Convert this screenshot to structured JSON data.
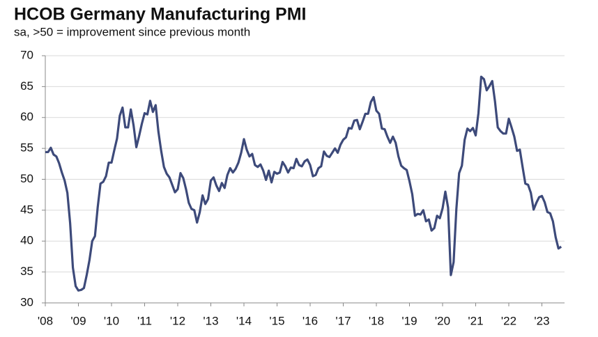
{
  "chart_data": {
    "type": "line",
    "title": "HCOB Germany Manufacturing PMI",
    "subtitle": "sa, >50 = improvement since previous month",
    "categories": [
      "'08",
      null,
      null,
      null,
      null,
      null,
      null,
      null,
      null,
      null,
      null,
      null,
      "'09",
      null,
      null,
      null,
      null,
      null,
      null,
      null,
      null,
      null,
      null,
      null,
      "'10",
      null,
      null,
      null,
      null,
      null,
      null,
      null,
      null,
      null,
      null,
      null,
      "'11",
      null,
      null,
      null,
      null,
      null,
      null,
      null,
      null,
      null,
      null,
      null,
      "'12",
      null,
      null,
      null,
      null,
      null,
      null,
      null,
      null,
      null,
      null,
      null,
      "'13",
      null,
      null,
      null,
      null,
      null,
      null,
      null,
      null,
      null,
      null,
      null,
      "'14",
      null,
      null,
      null,
      null,
      null,
      null,
      null,
      null,
      null,
      null,
      null,
      "'15",
      null,
      null,
      null,
      null,
      null,
      null,
      null,
      null,
      null,
      null,
      null,
      "'16",
      null,
      null,
      null,
      null,
      null,
      null,
      null,
      null,
      null,
      null,
      null,
      "'17",
      null,
      null,
      null,
      null,
      null,
      null,
      null,
      null,
      null,
      null,
      null,
      "'18",
      null,
      null,
      null,
      null,
      null,
      null,
      null,
      null,
      null,
      null,
      null,
      "'19",
      null,
      null,
      null,
      null,
      null,
      null,
      null,
      null,
      null,
      null,
      null,
      "'20",
      null,
      null,
      null,
      null,
      null,
      null,
      null,
      null,
      null,
      null,
      null,
      "'21",
      null,
      null,
      null,
      null,
      null,
      null,
      null,
      null,
      null,
      null,
      null,
      "'22",
      null,
      null,
      null,
      null,
      null,
      null,
      null,
      null,
      null,
      null,
      null,
      "'23",
      null,
      null,
      null,
      null,
      null,
      null,
      null
    ],
    "series": [
      {
        "color": "#3d4a7a",
        "values": [
          54.4,
          54.4,
          55.1,
          54.0,
          53.7,
          52.6,
          51.1,
          49.8,
          47.8,
          42.9,
          35.7,
          32.7,
          32.0,
          32.1,
          32.4,
          34.5,
          36.9,
          40.0,
          40.8,
          45.5,
          49.3,
          49.6,
          50.5,
          52.7,
          52.7,
          54.7,
          56.6,
          60.3,
          61.6,
          58.4,
          58.4,
          61.3,
          58.7,
          55.2,
          57.0,
          59.0,
          60.7,
          60.5,
          62.7,
          60.9,
          62.0,
          57.7,
          54.6,
          52.0,
          50.9,
          50.3,
          49.1,
          47.9,
          48.4,
          51.0,
          50.2,
          48.4,
          46.2,
          45.2,
          45.0,
          43.0,
          44.7,
          47.4,
          46.0,
          46.8,
          49.8,
          50.3,
          49.0,
          48.1,
          49.4,
          48.6,
          50.7,
          51.8,
          51.1,
          51.7,
          52.7,
          54.3,
          56.5,
          54.8,
          53.7,
          54.1,
          52.3,
          52.0,
          52.4,
          51.4,
          49.9,
          51.4,
          49.5,
          51.2,
          50.9,
          51.1,
          52.8,
          52.1,
          51.1,
          51.9,
          51.8,
          53.3,
          52.3,
          52.1,
          52.9,
          53.2,
          52.3,
          50.5,
          50.7,
          51.8,
          52.1,
          54.5,
          53.8,
          53.6,
          54.3,
          55.0,
          54.3,
          55.6,
          56.4,
          56.8,
          58.3,
          58.2,
          59.5,
          59.6,
          58.1,
          59.3,
          60.6,
          60.6,
          62.5,
          63.3,
          61.1,
          60.6,
          58.2,
          58.1,
          56.9,
          55.9,
          56.9,
          55.9,
          53.7,
          52.2,
          51.8,
          51.5,
          49.7,
          47.6,
          44.1,
          44.4,
          44.3,
          45.0,
          43.2,
          43.5,
          41.7,
          42.1,
          44.1,
          43.7,
          45.3,
          48.0,
          45.4,
          34.5,
          36.6,
          45.2,
          51.0,
          52.2,
          56.4,
          58.2,
          57.8,
          58.3,
          57.1,
          60.7,
          66.6,
          66.2,
          64.4,
          65.1,
          65.9,
          62.6,
          58.4,
          57.8,
          57.4,
          57.4,
          59.8,
          58.4,
          56.9,
          54.6,
          54.8,
          52.0,
          49.3,
          49.1,
          47.8,
          45.1,
          46.2,
          47.1,
          47.3,
          46.3,
          44.7,
          44.5,
          43.2,
          40.6,
          38.8,
          39.1
        ]
      }
    ],
    "ylim": [
      30,
      70
    ],
    "yticks": [
      30,
      35,
      40,
      45,
      50,
      55,
      60,
      65,
      70
    ],
    "grid": true
  }
}
